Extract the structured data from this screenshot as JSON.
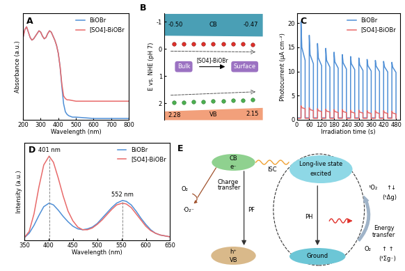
{
  "chart_data": [
    {
      "panel": "A",
      "type": "line",
      "x_label": "Wavelength (nm)",
      "y_label": "Absorbance (a.u.)",
      "x": [
        200,
        210,
        220,
        230,
        240,
        250,
        260,
        270,
        280,
        290,
        300,
        310,
        320,
        330,
        340,
        350,
        360,
        370,
        380,
        390,
        400,
        410,
        420,
        430,
        440,
        450,
        460,
        480,
        500,
        550,
        600,
        650,
        700,
        750,
        800
      ],
      "series": [
        {
          "name": "BiOBr",
          "color": "#4f8fd6",
          "values": [
            0.62,
            0.68,
            0.7,
            0.66,
            0.62,
            0.6,
            0.61,
            0.63,
            0.65,
            0.67,
            0.66,
            0.63,
            0.61,
            0.62,
            0.65,
            0.67,
            0.66,
            0.63,
            0.6,
            0.56,
            0.5,
            0.4,
            0.25,
            0.12,
            0.06,
            0.04,
            0.03,
            0.02,
            0.02,
            0.015,
            0.01,
            0.01,
            0.01,
            0.01,
            0.01
          ]
        },
        {
          "name": "[SO4]-BiOBr",
          "color": "#e86a6a",
          "values": [
            0.62,
            0.68,
            0.7,
            0.66,
            0.62,
            0.6,
            0.61,
            0.63,
            0.65,
            0.67,
            0.66,
            0.63,
            0.61,
            0.62,
            0.65,
            0.67,
            0.66,
            0.63,
            0.6,
            0.56,
            0.5,
            0.4,
            0.27,
            0.18,
            0.16,
            0.15,
            0.15,
            0.145,
            0.14,
            0.14,
            0.14,
            0.14,
            0.14,
            0.14,
            0.14
          ]
        }
      ],
      "xlim": [
        200,
        800
      ],
      "xticks": [
        200,
        300,
        400,
        500,
        600,
        700,
        800
      ],
      "ylim": [
        0,
        0.8
      ],
      "tick_labels": "x",
      "legend": "upper right"
    },
    {
      "panel": "B",
      "type": "band_diagram",
      "y_label": "E vs. NHE (pH 7)",
      "ylim": [
        2.6,
        -1.3
      ],
      "yticks": [
        -1,
        0,
        1,
        2
      ],
      "tick_labels": "y",
      "bands": [
        {
          "name": "CB",
          "color": "#4a9fb5",
          "values": [
            -0.5,
            -0.47
          ],
          "value_labels": [
            "-0.50",
            "-0.47"
          ]
        },
        {
          "name": "VB",
          "color": "#f2a07b",
          "values": [
            2.28,
            2.15
          ],
          "value_labels": [
            "2.28",
            "2.15"
          ]
        }
      ],
      "boxes": [
        "Bulk",
        "Surface"
      ],
      "arrow_label": "[SO4]-BiOBr"
    },
    {
      "panel": "C",
      "type": "line",
      "x_label": "Irradiation time (s)",
      "y_label": "Photocurrent (μA cm⁻²)",
      "x": [
        0,
        20,
        20,
        24,
        40,
        40,
        60,
        60,
        64,
        80,
        80,
        100,
        100,
        104,
        120,
        120,
        140,
        140,
        144,
        160,
        160,
        180,
        180,
        184,
        200,
        200,
        220,
        220,
        224,
        240,
        240,
        260,
        260,
        264,
        280,
        280,
        300,
        300,
        304,
        320,
        320,
        340,
        340,
        344,
        360,
        360,
        380,
        380,
        384,
        400,
        400,
        420,
        420,
        424,
        440,
        440,
        460,
        460,
        464,
        480,
        480
      ],
      "series": [
        {
          "name": "BiOBr",
          "color": "#4f8fd6",
          "values": [
            0.4,
            0.4,
            20.3,
            15.0,
            12.3,
            0.4,
            0.4,
            17.5,
            13.5,
            11.6,
            0.4,
            0.4,
            15.8,
            12.8,
            11.2,
            0.4,
            0.4,
            14.8,
            12.3,
            10.9,
            0.4,
            0.4,
            14.0,
            12.0,
            10.7,
            0.4,
            0.4,
            13.5,
            11.8,
            10.5,
            0.4,
            0.4,
            13.1,
            11.6,
            10.4,
            0.4,
            0.4,
            12.8,
            11.4,
            10.2,
            0.4,
            0.4,
            12.5,
            11.2,
            10.1,
            0.4,
            0.4,
            12.3,
            11.1,
            10.0,
            0.4,
            0.4,
            12.1,
            11.0,
            9.9,
            0.4,
            0.4,
            11.9,
            10.9,
            9.8,
            0.4
          ]
        },
        {
          "name": "[SO4]-BiOBr",
          "color": "#e86a6a",
          "values": [
            0.3,
            0.3,
            2.9,
            2.5,
            2.3,
            0.3,
            0.3,
            2.5,
            2.1,
            1.9,
            0.3,
            0.3,
            2.3,
            1.9,
            1.7,
            0.3,
            0.3,
            2.2,
            1.8,
            1.6,
            0.3,
            0.3,
            2.1,
            1.7,
            1.5,
            0.3,
            0.3,
            2.1,
            1.7,
            1.5,
            0.3,
            0.3,
            2.0,
            1.6,
            1.4,
            0.3,
            0.3,
            2.0,
            1.6,
            1.4,
            0.3,
            0.3,
            1.9,
            1.5,
            1.3,
            0.3,
            0.3,
            1.9,
            1.5,
            1.3,
            0.3,
            0.3,
            1.9,
            1.5,
            1.3,
            0.3,
            0.3,
            1.8,
            1.4,
            1.2,
            0.3
          ]
        }
      ],
      "xlim": [
        0,
        500
      ],
      "xticks": [
        0,
        60,
        120,
        180,
        240,
        300,
        360,
        420,
        480
      ],
      "ylim": [
        0,
        22
      ],
      "yticks": [
        0,
        5,
        10,
        15,
        20
      ],
      "legend": "upper right"
    },
    {
      "panel": "D",
      "type": "line",
      "x_label": "Wavelength (nm)",
      "y_label": "Intensity (a.u.)",
      "x": [
        350,
        360,
        370,
        380,
        390,
        401,
        410,
        420,
        430,
        440,
        450,
        460,
        470,
        480,
        490,
        500,
        510,
        520,
        530,
        540,
        552,
        560,
        570,
        580,
        590,
        600,
        610,
        620,
        630,
        640,
        650
      ],
      "series": [
        {
          "name": "BiOBr",
          "color": "#4f8fd6",
          "values": [
            0.03,
            0.08,
            0.17,
            0.28,
            0.38,
            0.42,
            0.4,
            0.34,
            0.27,
            0.21,
            0.16,
            0.13,
            0.12,
            0.13,
            0.15,
            0.19,
            0.25,
            0.31,
            0.37,
            0.42,
            0.45,
            0.44,
            0.4,
            0.33,
            0.25,
            0.18,
            0.12,
            0.08,
            0.06,
            0.05,
            0.04
          ]
        },
        {
          "name": "[SO4]-BiOBr",
          "color": "#e86a6a",
          "values": [
            0.03,
            0.1,
            0.3,
            0.6,
            0.85,
            0.95,
            0.88,
            0.7,
            0.5,
            0.33,
            0.22,
            0.15,
            0.12,
            0.12,
            0.14,
            0.18,
            0.23,
            0.29,
            0.35,
            0.4,
            0.42,
            0.41,
            0.37,
            0.3,
            0.23,
            0.16,
            0.11,
            0.08,
            0.06,
            0.05,
            0.04
          ]
        }
      ],
      "annotations": [
        {
          "text": "401 nm",
          "x": 401
        },
        {
          "text": "552 nm",
          "x": 552
        }
      ],
      "xlim": [
        350,
        650
      ],
      "xticks": [
        350,
        400,
        450,
        500,
        550,
        600,
        650
      ],
      "ylim": [
        0,
        1.1
      ],
      "tick_labels": "x",
      "legend": "upper right"
    },
    {
      "panel": "E",
      "type": "diagram",
      "texts": {
        "cb": "CB",
        "electron": "e⁻",
        "isc": "ISC",
        "excited_state": "Long-live state",
        "excited": "excited",
        "pf": "PF",
        "ph": "PH",
        "ground": "Ground",
        "vb": "VB",
        "hole": "h⁺",
        "oxygen": "O₂",
        "charge_transfer": [
          "Charge",
          "transfer"
        ],
        "superoxide": "·O₂⁻",
        "singlet_oxygen": "¹O₂",
        "singlet_spin": "↑↓",
        "singlet_state": "(¹Δg)",
        "energy_transfer": [
          "Energy",
          "transfer"
        ],
        "triplet_oxygen": "O₂",
        "triplet_spin": "↑ ↑",
        "triplet_state": "(³Σg⁻)"
      }
    }
  ]
}
